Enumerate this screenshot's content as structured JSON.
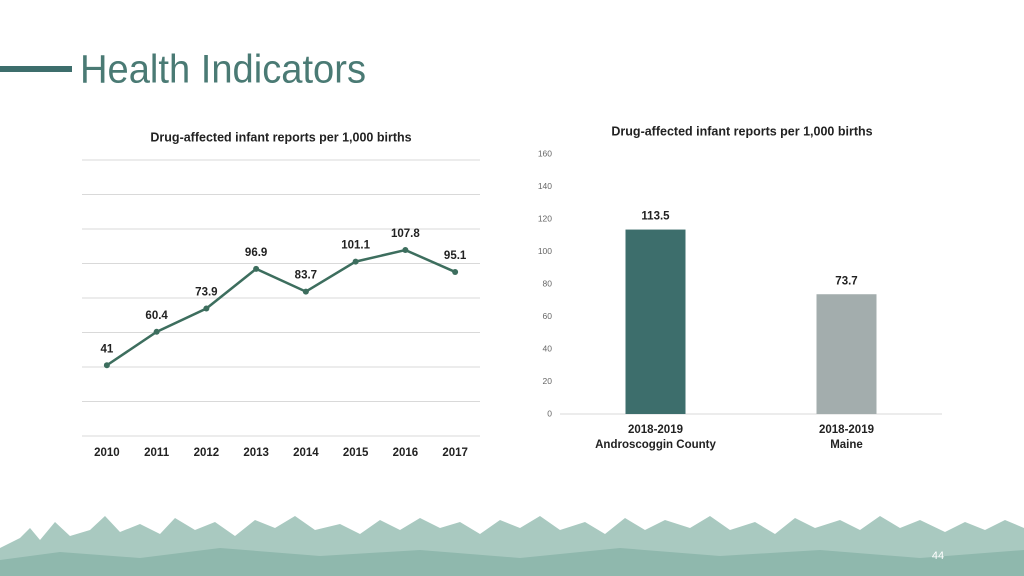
{
  "slide": {
    "title": "Health Indicators",
    "page_number": 44
  },
  "chart_data": [
    {
      "type": "line",
      "title": "Drug-affected infant reports per 1,000 births",
      "categories": [
        "2010",
        "2011",
        "2012",
        "2013",
        "2014",
        "2015",
        "2016",
        "2017"
      ],
      "values": [
        41,
        60.4,
        73.9,
        96.9,
        83.7,
        101.1,
        107.8,
        95.1
      ],
      "color": "#3d6e5e",
      "ylim": [
        0,
        160
      ],
      "yticks": [
        0,
        20,
        40,
        60,
        80,
        100,
        120,
        140,
        160
      ],
      "grid": true,
      "show_tick_labels": false,
      "data_labels": true
    },
    {
      "type": "bar",
      "title": "Drug-affected infant reports per 1,000 births",
      "categories": [
        [
          "2018-2019",
          "Androscoggin County"
        ],
        [
          "2018-2019",
          "Maine"
        ]
      ],
      "values": [
        113.5,
        73.7
      ],
      "colors": [
        "#3d6e6c",
        "#a3adad"
      ],
      "ylim": [
        0,
        160
      ],
      "yticks": [
        0,
        20,
        40,
        60,
        80,
        100,
        120,
        140,
        160
      ],
      "grid": false,
      "show_tick_labels": true,
      "data_labels": true
    }
  ]
}
